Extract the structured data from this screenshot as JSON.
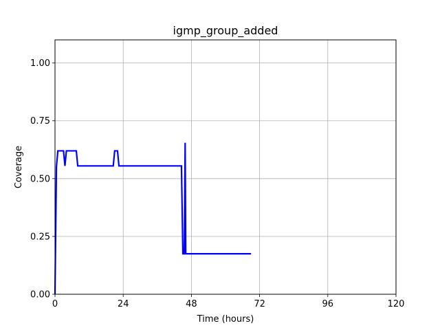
{
  "chart_data": {
    "type": "line",
    "title": "igmp_group_added",
    "xlabel": "Time (hours)",
    "ylabel": "Coverage",
    "xlim": [
      0,
      120
    ],
    "ylim": [
      0,
      1.1
    ],
    "x_ticks": [
      0,
      24,
      48,
      72,
      96,
      120
    ],
    "x_tick_labels": [
      "0",
      "24",
      "48",
      "72",
      "96",
      "120"
    ],
    "y_ticks": [
      0,
      0.25,
      0.5,
      0.75,
      1.0
    ],
    "y_tick_labels": [
      "0.00",
      "0.25",
      "0.50",
      "0.75",
      "1.00"
    ],
    "grid": true,
    "legend": "none",
    "series": [
      {
        "color": "#0000ff",
        "x": [
          0,
          0.5,
          1,
          3,
          3.5,
          4,
          7.5,
          8,
          20.5,
          21,
          22,
          22.5,
          44.5,
          45,
          45.5,
          45.8,
          46,
          46.5,
          47,
          69
        ],
        "y": [
          0,
          0.55,
          0.62,
          0.62,
          0.555,
          0.62,
          0.62,
          0.555,
          0.555,
          0.62,
          0.62,
          0.555,
          0.555,
          0.175,
          0.175,
          0.655,
          0.175,
          0.175,
          0.175,
          0.175
        ]
      }
    ]
  }
}
